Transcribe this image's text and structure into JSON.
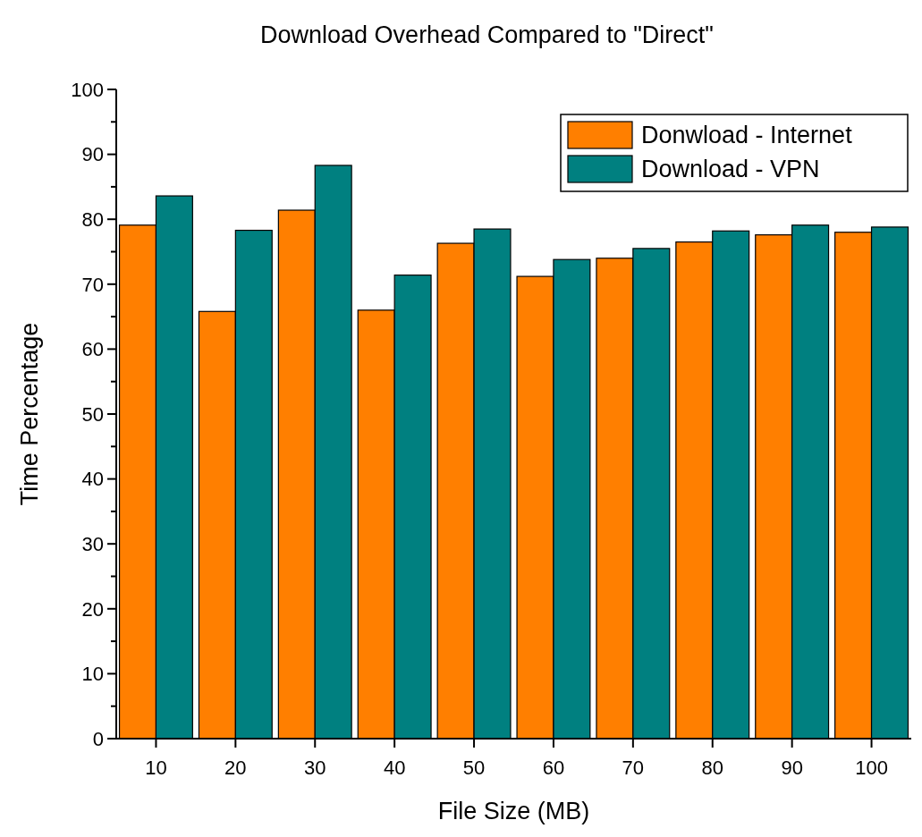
{
  "chart_data": {
    "type": "bar",
    "title": "Download Overhead Compared to \"Direct\"",
    "xlabel": "File Size (MB)",
    "ylabel": "Time Percentage",
    "categories": [
      "10",
      "20",
      "30",
      "40",
      "50",
      "60",
      "70",
      "80",
      "90",
      "100"
    ],
    "series": [
      {
        "name": "Donwload - Internet",
        "color": "#ff7f00",
        "values": [
          79.1,
          65.8,
          81.4,
          66.0,
          76.3,
          71.2,
          74.0,
          76.5,
          77.6,
          78.0
        ]
      },
      {
        "name": "Download - VPN",
        "color": "#008080",
        "values": [
          83.6,
          78.3,
          88.3,
          71.4,
          78.5,
          73.8,
          75.5,
          78.2,
          79.1,
          78.8
        ]
      }
    ],
    "ylim": [
      0,
      100
    ],
    "yticks": [
      0,
      {
        "value": 5,
        "label": null
      },
      10,
      {
        "value": 15,
        "label": null
      },
      20,
      {
        "value": 25,
        "label": null
      },
      30,
      {
        "value": 35,
        "label": null
      },
      40,
      {
        "value": 45,
        "label": null
      },
      50,
      {
        "value": 55,
        "label": null
      },
      60,
      {
        "value": 65,
        "label": null
      },
      70,
      {
        "value": 75,
        "label": null
      },
      80,
      {
        "value": 85,
        "label": null
      },
      90,
      {
        "value": 95,
        "label": null
      },
      100
    ],
    "legend": "top right",
    "grid": false
  }
}
